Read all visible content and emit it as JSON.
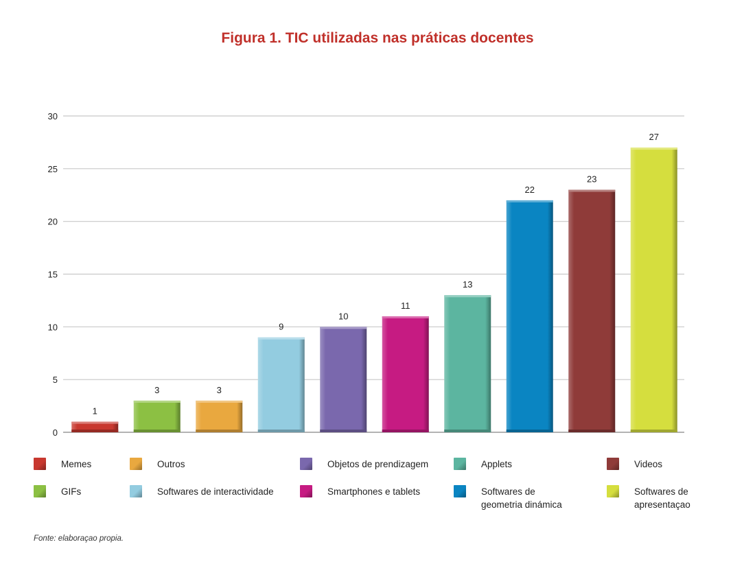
{
  "figure": {
    "title": "Figura 1. TIC utilizadas nas práticas docentes",
    "source": "Fonte: elaboraçao propia."
  },
  "chart_data": {
    "type": "bar",
    "title": "Figura 1. TIC utilizadas nas práticas docentes",
    "categories": [
      "Memes",
      "GIFs",
      "Outros",
      "Softwares de interactividade",
      "Objetos de prendizagem",
      "Smartphones e tablets",
      "Applets",
      "Softwares de geometria dinámica",
      "Videos",
      "Softwares de apresentaçao"
    ],
    "values": [
      1,
      3,
      3,
      9,
      10,
      11,
      13,
      22,
      23,
      27
    ],
    "colors": [
      "#c8382f",
      "#8cc043",
      "#e9a83f",
      "#93cce0",
      "#7a68ad",
      "#c61b82",
      "#5cb5a0",
      "#0a85c2",
      "#8f3b39",
      "#d5de3e"
    ],
    "ylim": [
      0,
      30
    ],
    "yticks": [
      0,
      5,
      10,
      15,
      20,
      25,
      30
    ],
    "grid": true,
    "data_labels": true,
    "legend_position": "bottom"
  },
  "legend": [
    {
      "label": "Memes",
      "color": "#c8382f"
    },
    {
      "label": "Outros",
      "color": "#e9a83f"
    },
    {
      "label": "Objetos de prendizagem",
      "color": "#7a68ad"
    },
    {
      "label": "Applets",
      "color": "#5cb5a0"
    },
    {
      "label": "Videos",
      "color": "#8f3b39"
    },
    {
      "label": "GIFs",
      "color": "#8cc043"
    },
    {
      "label": "Softwares de interactividade",
      "color": "#93cce0"
    },
    {
      "label": "Smartphones e tablets",
      "color": "#c61b82"
    },
    {
      "label": "Softwares de geometria dinámica",
      "color": "#0a85c2"
    },
    {
      "label": "Softwares de apresentaçao",
      "color": "#d5de3e"
    }
  ]
}
